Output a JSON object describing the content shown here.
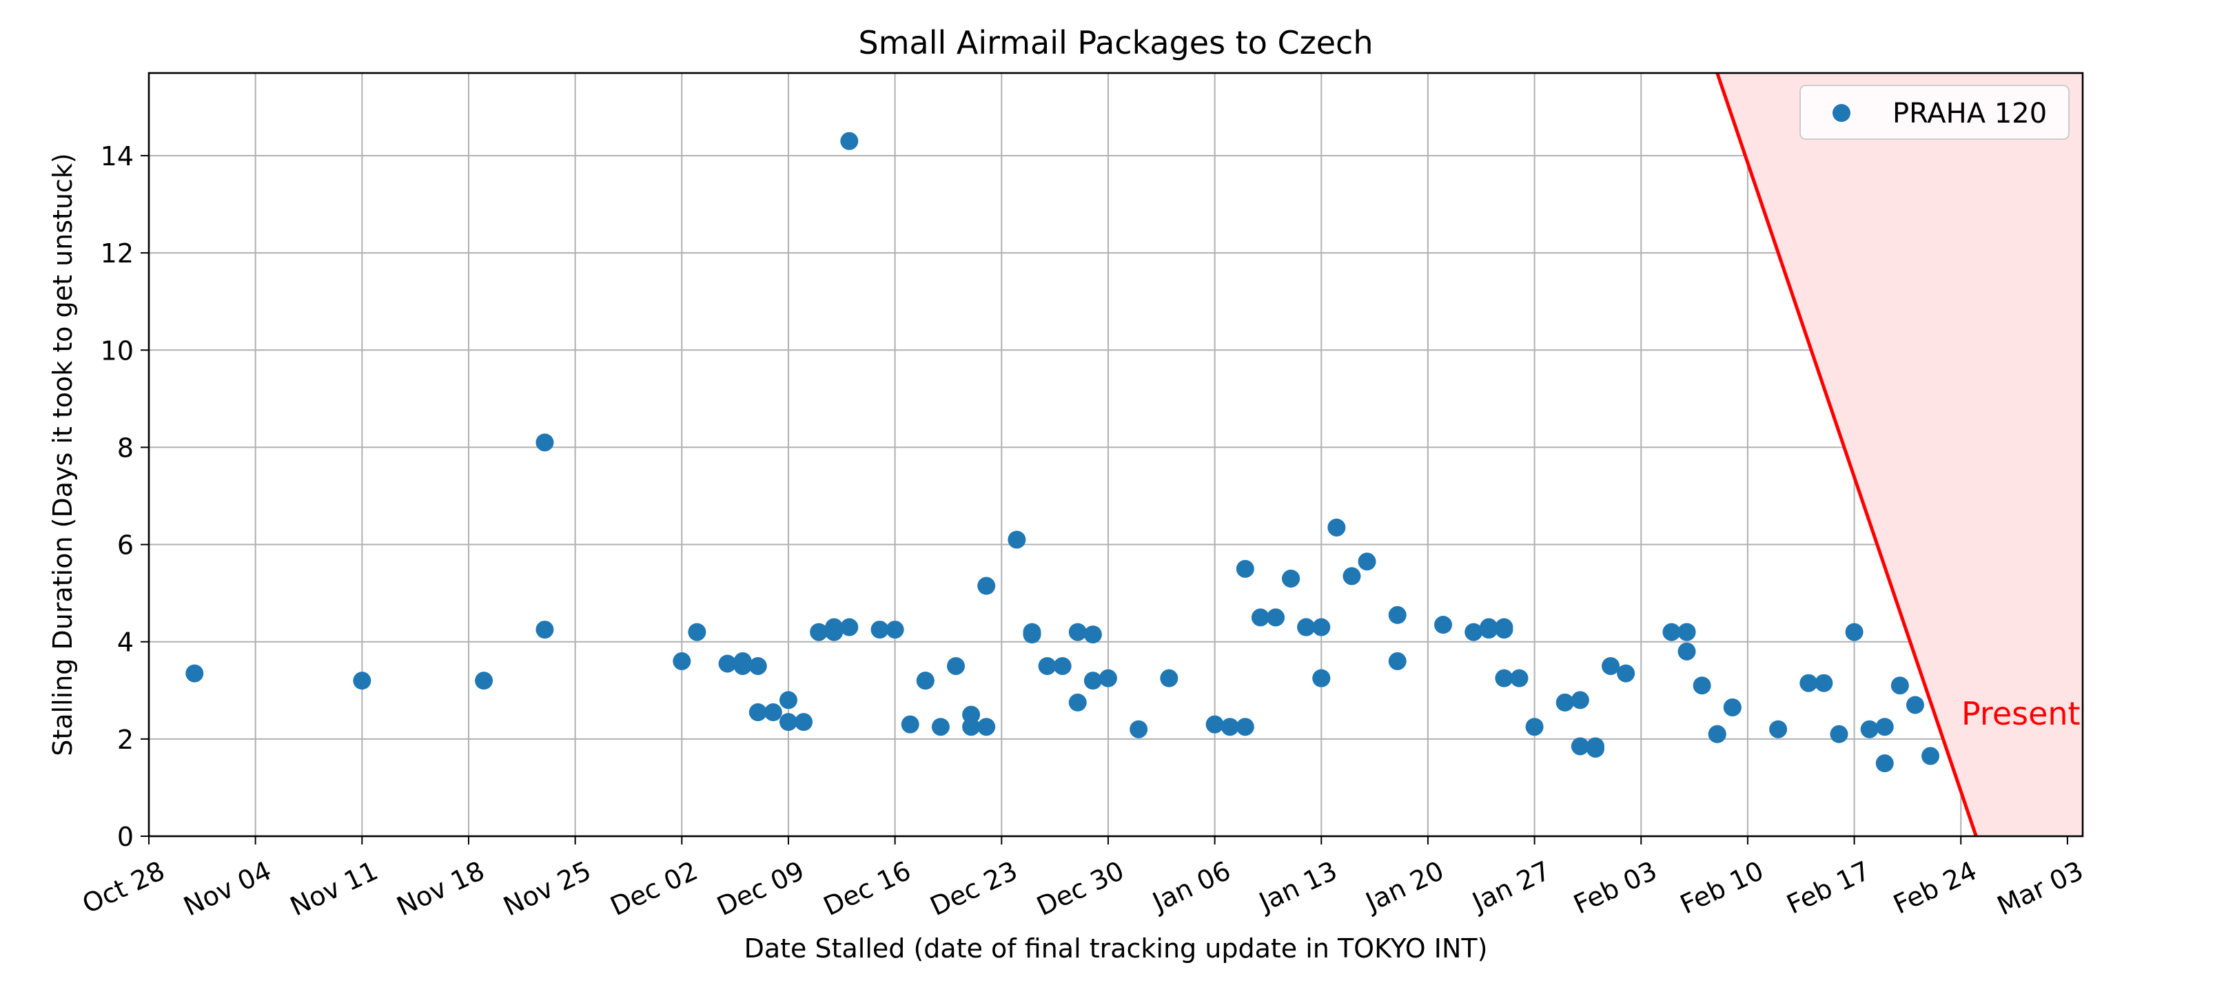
{
  "chart_data": {
    "type": "scatter",
    "title": "Small Airmail Packages to Czech",
    "xlabel": "Date Stalled (date of final tracking update in TOKYO INT)",
    "ylabel": "Stalling Duration (Days it took to get unstuck)",
    "x_type": "date",
    "xlim": [
      "2023-10-28",
      "2024-03-03"
    ],
    "ylim": [
      0,
      15.7
    ],
    "xticks": [
      "Oct 28",
      "Nov 04",
      "Nov 11",
      "Nov 18",
      "Nov 25",
      "Dec 02",
      "Dec 09",
      "Dec 16",
      "Dec 23",
      "Dec 30",
      "Jan 06",
      "Jan 13",
      "Jan 20",
      "Jan 27",
      "Feb 03",
      "Feb 10",
      "Feb 17",
      "Feb 24",
      "Mar 03"
    ],
    "yticks": [
      0,
      2,
      4,
      6,
      8,
      10,
      12,
      14
    ],
    "grid": true,
    "legend_position": "top-right",
    "colors": {
      "points": "#1f77b4",
      "present_line": "#ff0000",
      "present_fill": "#ffe4e6"
    },
    "series": [
      {
        "name": "PRAHA 120",
        "points": [
          [
            "2023-10-31",
            3.35
          ],
          [
            "2023-11-11",
            3.2
          ],
          [
            "2023-11-19",
            3.2
          ],
          [
            "2023-11-23",
            4.25
          ],
          [
            "2023-11-23",
            8.1
          ],
          [
            "2023-12-02",
            3.6
          ],
          [
            "2023-12-03",
            4.2
          ],
          [
            "2023-12-05",
            3.55
          ],
          [
            "2023-12-06",
            3.6
          ],
          [
            "2023-12-06",
            3.5
          ],
          [
            "2023-12-07",
            3.5
          ],
          [
            "2023-12-07",
            2.55
          ],
          [
            "2023-12-08",
            2.55
          ],
          [
            "2023-12-09",
            2.8
          ],
          [
            "2023-12-09",
            2.35
          ],
          [
            "2023-12-10",
            2.35
          ],
          [
            "2023-12-11",
            4.2
          ],
          [
            "2023-12-12",
            4.2
          ],
          [
            "2023-12-12",
            4.3
          ],
          [
            "2023-12-13",
            4.3
          ],
          [
            "2023-12-13",
            14.3
          ],
          [
            "2023-12-15",
            4.25
          ],
          [
            "2023-12-16",
            4.25
          ],
          [
            "2023-12-17",
            2.3
          ],
          [
            "2023-12-18",
            3.2
          ],
          [
            "2023-12-18",
            3.2
          ],
          [
            "2023-12-19",
            2.25
          ],
          [
            "2023-12-20",
            3.5
          ],
          [
            "2023-12-21",
            2.5
          ],
          [
            "2023-12-21",
            2.25
          ],
          [
            "2023-12-22",
            2.25
          ],
          [
            "2023-12-22",
            5.15
          ],
          [
            "2023-12-24",
            6.1
          ],
          [
            "2023-12-25",
            4.2
          ],
          [
            "2023-12-25",
            4.15
          ],
          [
            "2023-12-26",
            3.5
          ],
          [
            "2023-12-27",
            3.5
          ],
          [
            "2023-12-28",
            2.75
          ],
          [
            "2023-12-28",
            4.2
          ],
          [
            "2023-12-29",
            4.15
          ],
          [
            "2023-12-29",
            3.2
          ],
          [
            "2023-12-30",
            3.25
          ],
          [
            "2024-01-01",
            2.2
          ],
          [
            "2024-01-03",
            3.25
          ],
          [
            "2024-01-06",
            2.3
          ],
          [
            "2024-01-07",
            2.25
          ],
          [
            "2024-01-08",
            2.25
          ],
          [
            "2024-01-08",
            5.5
          ],
          [
            "2024-01-09",
            4.5
          ],
          [
            "2024-01-10",
            4.5
          ],
          [
            "2024-01-10",
            4.5
          ],
          [
            "2024-01-11",
            5.3
          ],
          [
            "2024-01-11",
            5.3
          ],
          [
            "2024-01-12",
            4.3
          ],
          [
            "2024-01-12",
            4.3
          ],
          [
            "2024-01-13",
            4.3
          ],
          [
            "2024-01-13",
            3.25
          ],
          [
            "2024-01-13",
            3.25
          ],
          [
            "2024-01-14",
            6.35
          ],
          [
            "2024-01-15",
            5.35
          ],
          [
            "2024-01-16",
            5.65
          ],
          [
            "2024-01-18",
            4.55
          ],
          [
            "2024-01-18",
            3.6
          ],
          [
            "2024-01-21",
            4.35
          ],
          [
            "2024-01-23",
            4.2
          ],
          [
            "2024-01-24",
            4.25
          ],
          [
            "2024-01-24",
            4.3
          ],
          [
            "2024-01-25",
            4.25
          ],
          [
            "2024-01-25",
            4.3
          ],
          [
            "2024-01-25",
            3.25
          ],
          [
            "2024-01-26",
            3.25
          ],
          [
            "2024-01-27",
            2.25
          ],
          [
            "2024-01-29",
            2.75
          ],
          [
            "2024-01-29",
            2.75
          ],
          [
            "2024-01-30",
            2.8
          ],
          [
            "2024-01-30",
            1.85
          ],
          [
            "2024-01-31",
            1.8
          ],
          [
            "2024-01-31",
            1.85
          ],
          [
            "2024-02-01",
            3.5
          ],
          [
            "2024-02-02",
            3.35
          ],
          [
            "2024-02-05",
            4.2
          ],
          [
            "2024-02-06",
            4.2
          ],
          [
            "2024-02-06",
            4.2
          ],
          [
            "2024-02-06",
            3.8
          ],
          [
            "2024-02-07",
            3.1
          ],
          [
            "2024-02-08",
            2.1
          ],
          [
            "2024-02-08",
            2.1
          ],
          [
            "2024-02-09",
            2.65
          ],
          [
            "2024-02-09",
            2.65
          ],
          [
            "2024-02-12",
            2.2
          ],
          [
            "2024-02-14",
            3.15
          ],
          [
            "2024-02-15",
            3.15
          ],
          [
            "2024-02-16",
            2.1
          ],
          [
            "2024-02-17",
            4.2
          ],
          [
            "2024-02-18",
            2.2
          ],
          [
            "2024-02-19",
            2.25
          ],
          [
            "2024-02-19",
            1.5
          ],
          [
            "2024-02-20",
            3.1
          ],
          [
            "2024-02-21",
            2.7
          ],
          [
            "2024-02-22",
            1.65
          ]
        ]
      }
    ],
    "annotations": [
      {
        "text": "Present",
        "color": "#ff0000",
        "line": {
          "from": [
            "2024-02-08",
            15.7
          ],
          "to": [
            "2024-02-25",
            0
          ]
        }
      }
    ]
  }
}
